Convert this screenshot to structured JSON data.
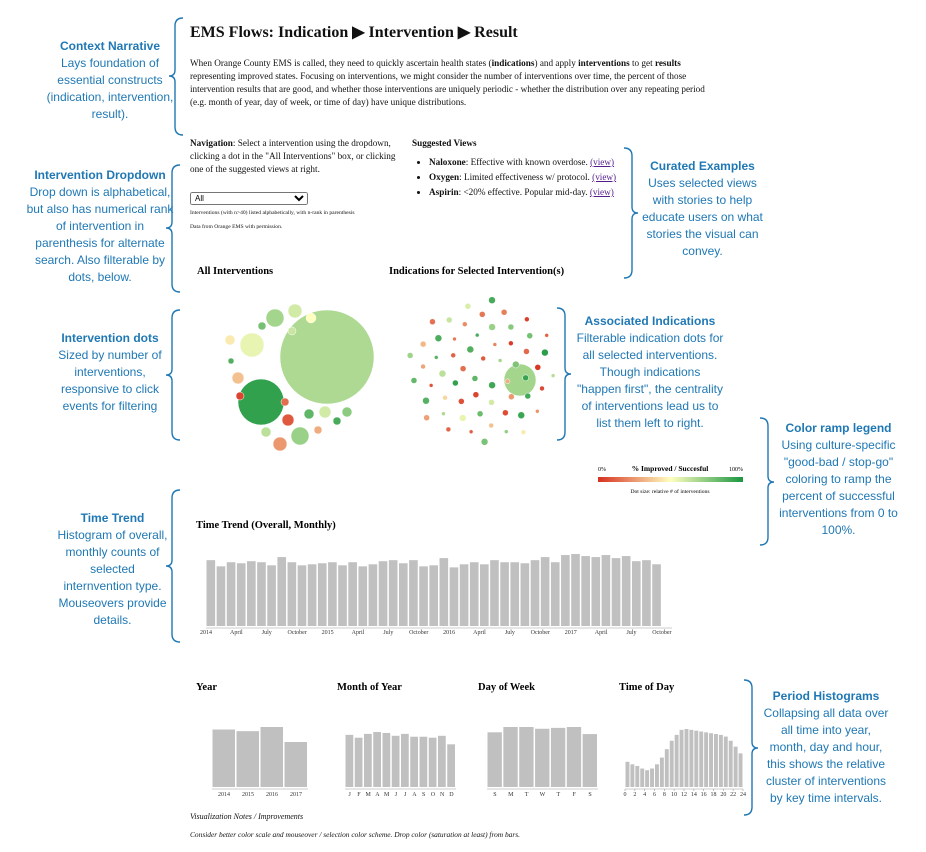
{
  "annotations": [
    {
      "title": "Context Narrative",
      "text": "Lays foundation of essential constructs (indication, intervention, result)."
    },
    {
      "title": "Intervention Dropdown",
      "text": "Drop down is alphabetical, but also has numerical rank of intervention in parenthesis for alternate search. Also filterable by dots, below."
    },
    {
      "title": "Intervention dots",
      "text": "Sized by number of interventions, responsive to click events for filtering"
    },
    {
      "title": "Time Trend",
      "text": "Histogram of overall, monthly counts of selected internvention type. Mouseovers provide details."
    },
    {
      "title": "Curated Examples",
      "text": "Uses selected views with stories to help educate users on what stories the visual can convey."
    },
    {
      "title": "Associated Indications",
      "text": "Filterable indication dots for all selected interventions. Though indications \"happen first\", the centrality of interventions lead us to list them left to right."
    },
    {
      "title": "Color ramp legend",
      "text": "Using culture-specific \"good-bad / stop-go\" coloring to ramp the percent of successful interventions from 0 to 100%."
    },
    {
      "title": "Period Histograms",
      "text": "Collapsing all data over all time into year, month, day and hour, this shows the relative cluster of interventions by key time intervals."
    }
  ],
  "header": {
    "title": "EMS Flows: Indication ▶ Intervention ▶ Result"
  },
  "intro": [
    "When Orange County EMS is called, they need to quickly ascertain health states (",
    "indications",
    ") and apply ",
    "interventions",
    " to get ",
    "results",
    " representing improved states. Focusing on interventions, we might consider the number of interventions over time, the percent of those intervention results that are good, and whether those interventions are uniquely periodic - whether the distribution over any repeating period (e.g. month of year, day of week, or time of day) have unique distributions."
  ],
  "navigation": {
    "label": "Navigation",
    "text": ": Select a intervention using the dropdown, clicking a dot in the \"All Interventions\" box, or clicking one of the suggested views at right."
  },
  "dropdown": {
    "selected": "All",
    "note": "Interventions (with n>40) listed alphabetically, with n-rank in parenthesis",
    "source": "Data from Orange EMS with permission."
  },
  "suggested_views": {
    "title": "Suggested Views",
    "items": [
      {
        "name": "Naloxone",
        "text": ": Effective with known overdose. ",
        "link": "(view)"
      },
      {
        "name": "Oxygen",
        "text": ": Limited effectiveness w/ protocol. ",
        "link": "(view)"
      },
      {
        "name": "Aspirin",
        "text": ": <20% effective. Popular mid-day. ",
        "link": "(view)"
      }
    ]
  },
  "chart_data": [
    {
      "type": "bubble",
      "title": "All Interventions",
      "color_ramp": [
        "#d7301f",
        "#ffffbf",
        "#1a9641"
      ],
      "values": [
        68,
        95,
        55,
        70,
        60,
        72,
        25,
        10,
        85,
        65,
        35,
        60,
        90,
        45,
        50,
        80,
        15,
        75,
        5,
        88,
        30,
        62
      ],
      "sizes": [
        2209,
        529,
        144,
        81,
        49,
        81,
        49,
        36,
        25,
        25,
        36,
        36,
        16,
        25,
        25,
        16,
        16,
        25,
        16,
        9,
        16,
        16
      ]
    },
    {
      "type": "bubble",
      "title": "Indications for Selected Intervention(s)",
      "color_ramp": [
        "#d7301f",
        "#ffffbf",
        "#1a9641"
      ],
      "legend": {
        "min_label": "0%",
        "title": "% Improved / Succesful",
        "max_label": "100%",
        "note": "Dot size: relative # of interventions"
      },
      "values": [
        70,
        85,
        10,
        92,
        15,
        70,
        5,
        88,
        30,
        95,
        20,
        60,
        12,
        78,
        8,
        90,
        25,
        65,
        3,
        82,
        18,
        94,
        40,
        72,
        7,
        86,
        14,
        55,
        22,
        91,
        9,
        76,
        35,
        89,
        2,
        68,
        17,
        93,
        28,
        80,
        11,
        62,
        6,
        87,
        19,
        74,
        33,
        96,
        13,
        58,
        24,
        84,
        4,
        79,
        16,
        66,
        27,
        90,
        45,
        71,
        12
      ],
      "sizes": [
        256,
        9,
        6,
        12,
        9,
        4,
        9,
        12,
        6,
        9,
        4,
        9,
        6,
        12,
        9,
        4,
        9,
        12,
        6,
        9,
        4,
        9,
        6,
        12,
        9,
        4,
        9,
        12,
        6,
        9,
        4,
        9,
        6,
        12,
        9,
        4,
        9,
        12,
        6,
        9,
        4,
        9,
        6,
        12,
        9,
        4,
        9,
        12,
        6,
        9,
        4,
        9,
        6,
        12,
        9,
        4,
        9,
        12,
        6,
        9,
        4
      ]
    },
    {
      "type": "bar",
      "title": "Time Trend (Overall, Monthly)",
      "color": "#c0c0c0",
      "categories": [
        "2014",
        null,
        null,
        "April",
        null,
        null,
        "July",
        null,
        null,
        "October",
        null,
        null,
        "2015",
        null,
        null,
        "April",
        null,
        null,
        "July",
        null,
        null,
        "October",
        null,
        null,
        "2016",
        null,
        null,
        "April",
        null,
        null,
        "July",
        null,
        null,
        "October",
        null,
        null,
        "2017",
        null,
        null,
        "April",
        null,
        null,
        "July",
        null,
        null,
        "October"
      ],
      "values": [
        64,
        58,
        62,
        61,
        63,
        62,
        59,
        67,
        62,
        59,
        60,
        61,
        62,
        59,
        62,
        58,
        60,
        63,
        64,
        61,
        64,
        58,
        59,
        66,
        57,
        60,
        62,
        60,
        64,
        62,
        62,
        61,
        64,
        67,
        62,
        69,
        70,
        68,
        67,
        69,
        66,
        68,
        63,
        64,
        60,
        null
      ]
    },
    {
      "type": "bar",
      "title": "Year",
      "color": "#c0c0c0",
      "categories": [
        "2014",
        "2015",
        "2016",
        "2017"
      ],
      "values": [
        69,
        67,
        72,
        54
      ]
    },
    {
      "type": "bar",
      "title": "Month of Year",
      "color": "#c0c0c0",
      "categories": [
        "J",
        "F",
        "M",
        "A",
        "M",
        "J",
        "J",
        "A",
        "S",
        "O",
        "N",
        "D"
      ],
      "values": [
        55,
        52,
        56,
        58,
        57,
        54,
        56,
        53,
        53,
        52,
        54,
        45
      ]
    },
    {
      "type": "bar",
      "title": "Day of Week",
      "color": "#c0c0c0",
      "categories": [
        "S",
        "M",
        "T",
        "W",
        "T",
        "F",
        "S"
      ],
      "values": [
        62,
        68,
        68,
        66,
        67,
        68,
        60
      ]
    },
    {
      "type": "bar",
      "title": "Time of Day",
      "color": "#c0c0c0",
      "x": [
        0,
        1,
        2,
        3,
        4,
        5,
        6,
        7,
        8,
        9,
        10,
        11,
        12,
        13,
        14,
        15,
        16,
        17,
        18,
        19,
        20,
        21,
        22,
        23
      ],
      "values": [
        30,
        27,
        25,
        22,
        20,
        22,
        27,
        35,
        45,
        55,
        62,
        68,
        69,
        68,
        67,
        66,
        65,
        64,
        63,
        62,
        60,
        55,
        48,
        40
      ],
      "xlim": [
        0,
        24
      ],
      "xticks": [
        0,
        2,
        4,
        6,
        8,
        10,
        12,
        14,
        16,
        18,
        20,
        22,
        24
      ]
    }
  ],
  "notes": {
    "title": "Visualization Notes / Improvements",
    "text": "Consider better color scale and mouseover / selection color scheme. Drop color (saturation at least) from bars."
  }
}
